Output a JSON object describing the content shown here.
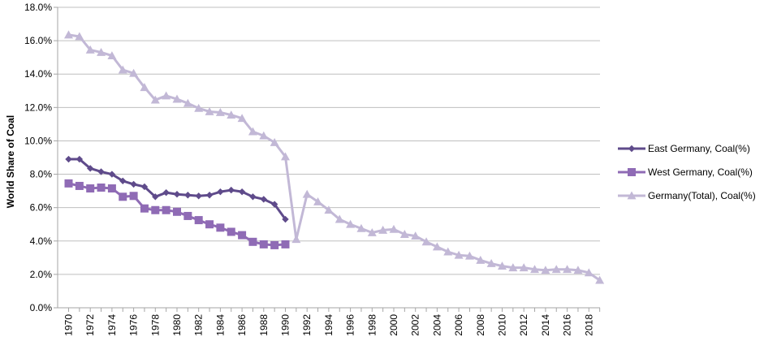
{
  "chart_data": {
    "type": "line",
    "title": "",
    "xlabel": "",
    "ylabel": "World Share of Coal",
    "ylim": [
      0,
      18
    ],
    "y_tick_values": [
      0,
      2,
      4,
      6,
      8,
      10,
      12,
      14,
      16,
      18
    ],
    "y_tick_labels": [
      "0.0%",
      "2.0%",
      "4.0%",
      "6.0%",
      "8.0%",
      "10.0%",
      "12.0%",
      "14.0%",
      "16.0%",
      "18.0%"
    ],
    "x_range": [
      1970,
      2019
    ],
    "x_tick_labels": [
      "1970",
      "1972",
      "1974",
      "1976",
      "1978",
      "1980",
      "1982",
      "1984",
      "1986",
      "1988",
      "1990",
      "1992",
      "1994",
      "1996",
      "1998",
      "2000",
      "2002",
      "2004",
      "2006",
      "2008",
      "2010",
      "2012",
      "2014",
      "2016",
      "2018"
    ],
    "grid": "horizontal",
    "legend_position": "right",
    "series": [
      {
        "name": "East Germany, Coal(%)",
        "color": "#5f4b8b",
        "marker": "diamond",
        "x": [
          1970,
          1971,
          1972,
          1973,
          1974,
          1975,
          1976,
          1977,
          1978,
          1979,
          1980,
          1981,
          1982,
          1983,
          1984,
          1985,
          1986,
          1987,
          1988,
          1989,
          1990
        ],
        "values": [
          8.9,
          8.9,
          8.35,
          8.15,
          8.0,
          7.6,
          7.4,
          7.25,
          6.65,
          6.9,
          6.8,
          6.75,
          6.7,
          6.75,
          6.95,
          7.05,
          6.95,
          6.65,
          6.5,
          6.2,
          5.3
        ]
      },
      {
        "name": "West Germany, Coal(%)",
        "color": "#8f6bb5",
        "marker": "square",
        "x": [
          1970,
          1971,
          1972,
          1973,
          1974,
          1975,
          1976,
          1977,
          1978,
          1979,
          1980,
          1981,
          1982,
          1983,
          1984,
          1985,
          1986,
          1987,
          1988,
          1989,
          1990
        ],
        "values": [
          7.45,
          7.3,
          7.15,
          7.2,
          7.15,
          6.65,
          6.7,
          5.95,
          5.85,
          5.85,
          5.75,
          5.5,
          5.25,
          5.0,
          4.8,
          4.55,
          4.35,
          3.95,
          3.8,
          3.75,
          3.8
        ]
      },
      {
        "name": "Germany(Total), Coal(%)",
        "color": "#c2b8d6",
        "marker": "triangle",
        "x": [
          1970,
          1971,
          1972,
          1973,
          1974,
          1975,
          1976,
          1977,
          1978,
          1979,
          1980,
          1981,
          1982,
          1983,
          1984,
          1985,
          1986,
          1987,
          1988,
          1989,
          1990,
          1991,
          1992,
          1993,
          1994,
          1995,
          1996,
          1997,
          1998,
          1999,
          2000,
          2001,
          2002,
          2003,
          2004,
          2005,
          2006,
          2007,
          2008,
          2009,
          2010,
          2011,
          2012,
          2013,
          2014,
          2015,
          2016,
          2017,
          2018,
          2019
        ],
        "values": [
          16.35,
          16.25,
          15.45,
          15.3,
          15.1,
          14.25,
          14.05,
          13.2,
          12.45,
          12.7,
          12.5,
          12.25,
          11.95,
          11.75,
          11.7,
          11.55,
          11.35,
          10.55,
          10.3,
          9.9,
          9.05,
          4.1,
          6.8,
          6.35,
          5.85,
          5.3,
          5.0,
          4.75,
          4.5,
          4.65,
          4.7,
          4.4,
          4.3,
          3.95,
          3.65,
          3.35,
          3.15,
          3.1,
          2.85,
          2.65,
          2.5,
          2.4,
          2.4,
          2.3,
          2.25,
          2.3,
          2.3,
          2.25,
          2.1,
          1.65
        ]
      }
    ]
  }
}
